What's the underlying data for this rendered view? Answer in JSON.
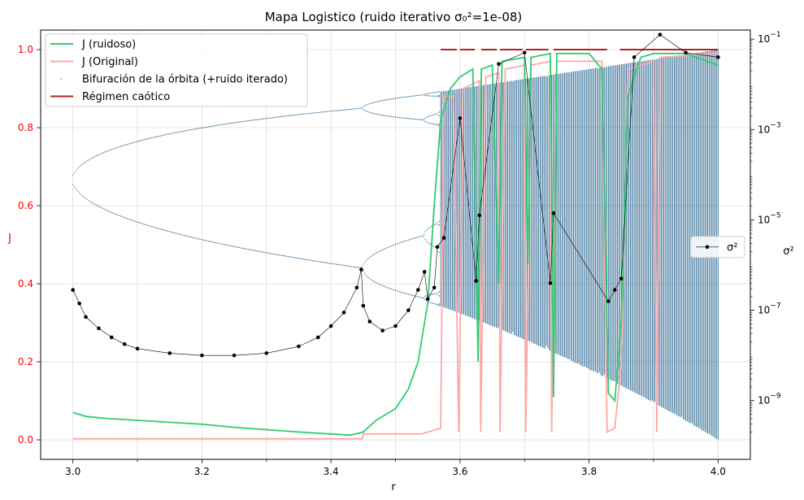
{
  "chart_data": {
    "type": "line",
    "title": "Mapa Logistico (ruido iterativo σ₀²=1e-08)",
    "xlabel": "r",
    "ylabel_left": "J",
    "ylabel_right": "σ²",
    "xlim": [
      2.95,
      4.05
    ],
    "ylim_left": [
      -0.05,
      1.05
    ],
    "ylim_right_log10": [
      -10.3,
      -0.8
    ],
    "right_axis_scale": "log",
    "grid": true,
    "legend_position": "upper-left",
    "x_ticks": [
      "3.0",
      "3.2",
      "3.4",
      "3.6",
      "3.8",
      "4.0"
    ],
    "y_ticks_left": [
      "0.0",
      "0.2",
      "0.4",
      "0.6",
      "0.8",
      "1.0"
    ],
    "y_ticks_right": [
      {
        "base": "10",
        "exp": "−1",
        "log10": -1
      },
      {
        "base": "10",
        "exp": "−3",
        "log10": -3
      },
      {
        "base": "10",
        "exp": "−5",
        "log10": -5
      },
      {
        "base": "10",
        "exp": "−7",
        "log10": -7
      },
      {
        "base": "10",
        "exp": "−9",
        "log10": -9
      }
    ],
    "colors": {
      "j_noisy": "#2ecc71",
      "j_original": "#ffa8a8",
      "bifurcation": "#1f5f8b",
      "chaotic": "#b22222",
      "sigma": "#000000"
    },
    "series": [
      {
        "name": "J (ruidoso)",
        "axis": "left",
        "points": [
          [
            3.0,
            0.07
          ],
          [
            3.02,
            0.06
          ],
          [
            3.05,
            0.055
          ],
          [
            3.1,
            0.05
          ],
          [
            3.15,
            0.045
          ],
          [
            3.2,
            0.04
          ],
          [
            3.25,
            0.032
          ],
          [
            3.3,
            0.026
          ],
          [
            3.35,
            0.02
          ],
          [
            3.4,
            0.015
          ],
          [
            3.43,
            0.012
          ],
          [
            3.45,
            0.02
          ],
          [
            3.47,
            0.05
          ],
          [
            3.5,
            0.08
          ],
          [
            3.52,
            0.13
          ],
          [
            3.535,
            0.2
          ],
          [
            3.55,
            0.35
          ],
          [
            3.56,
            0.6
          ],
          [
            3.57,
            0.82
          ],
          [
            3.585,
            0.9
          ],
          [
            3.6,
            0.93
          ],
          [
            3.62,
            0.95
          ],
          [
            3.628,
            0.2
          ],
          [
            3.633,
            0.95
          ],
          [
            3.65,
            0.96
          ],
          [
            3.66,
            0.4
          ],
          [
            3.665,
            0.97
          ],
          [
            3.7,
            0.98
          ],
          [
            3.705,
            0.45
          ],
          [
            3.71,
            0.98
          ],
          [
            3.74,
            0.99
          ],
          [
            3.745,
            0.11
          ],
          [
            3.75,
            0.99
          ],
          [
            3.8,
            0.99
          ],
          [
            3.82,
            0.95
          ],
          [
            3.83,
            0.12
          ],
          [
            3.84,
            0.1
          ],
          [
            3.85,
            0.3
          ],
          [
            3.86,
            0.88
          ],
          [
            3.88,
            0.98
          ],
          [
            3.9,
            0.99
          ],
          [
            3.95,
            0.99
          ],
          [
            4.0,
            0.96
          ]
        ]
      },
      {
        "name": "J (Original)",
        "axis": "left",
        "points": [
          [
            3.0,
            0.003
          ],
          [
            3.2,
            0.003
          ],
          [
            3.449,
            0.003
          ],
          [
            3.45,
            0.015
          ],
          [
            3.54,
            0.015
          ],
          [
            3.57,
            0.03
          ],
          [
            3.575,
            0.88
          ],
          [
            3.59,
            0.88
          ],
          [
            3.598,
            0.02
          ],
          [
            3.605,
            0.9
          ],
          [
            3.63,
            0.92
          ],
          [
            3.632,
            0.02
          ],
          [
            3.64,
            0.93
          ],
          [
            3.66,
            0.94
          ],
          [
            3.662,
            0.02
          ],
          [
            3.67,
            0.95
          ],
          [
            3.7,
            0.96
          ],
          [
            3.702,
            0.02
          ],
          [
            3.71,
            0.96
          ],
          [
            3.74,
            0.97
          ],
          [
            3.742,
            0.02
          ],
          [
            3.75,
            0.97
          ],
          [
            3.82,
            0.97
          ],
          [
            3.828,
            0.02
          ],
          [
            3.84,
            0.03
          ],
          [
            3.85,
            0.2
          ],
          [
            3.86,
            0.95
          ],
          [
            3.9,
            0.97
          ],
          [
            3.905,
            0.02
          ],
          [
            3.91,
            0.98
          ],
          [
            4.0,
            0.99
          ]
        ]
      },
      {
        "name": "Bifuración de la órbita (+ruido iterado)",
        "axis": "left",
        "description_type": "bifurcation-scatter"
      },
      {
        "name": "Régimen caótico",
        "axis": "left",
        "y": 1.0,
        "segments": [
          [
            3.57,
            3.595
          ],
          [
            3.6,
            3.623
          ],
          [
            3.633,
            3.657
          ],
          [
            3.662,
            3.697
          ],
          [
            3.702,
            3.737
          ],
          [
            3.745,
            3.828
          ],
          [
            3.848,
            4.0
          ]
        ]
      },
      {
        "name": "σ²",
        "axis": "right",
        "points_log10": [
          [
            3.0,
            -6.55
          ],
          [
            3.01,
            -6.85
          ],
          [
            3.02,
            -7.15
          ],
          [
            3.04,
            -7.4
          ],
          [
            3.06,
            -7.6
          ],
          [
            3.08,
            -7.75
          ],
          [
            3.1,
            -7.85
          ],
          [
            3.15,
            -7.95
          ],
          [
            3.2,
            -8.0
          ],
          [
            3.25,
            -8.0
          ],
          [
            3.3,
            -7.95
          ],
          [
            3.35,
            -7.8
          ],
          [
            3.38,
            -7.6
          ],
          [
            3.4,
            -7.35
          ],
          [
            3.42,
            -7.05
          ],
          [
            3.44,
            -6.5
          ],
          [
            3.447,
            -6.1
          ],
          [
            3.45,
            -6.9
          ],
          [
            3.46,
            -7.25
          ],
          [
            3.48,
            -7.45
          ],
          [
            3.5,
            -7.35
          ],
          [
            3.52,
            -7.0
          ],
          [
            3.535,
            -6.55
          ],
          [
            3.545,
            -6.15
          ],
          [
            3.55,
            -6.75
          ],
          [
            3.56,
            -6.5
          ],
          [
            3.565,
            -5.6
          ],
          [
            3.575,
            -5.4
          ],
          [
            3.6,
            -2.75
          ],
          [
            3.625,
            -6.35
          ],
          [
            3.63,
            -4.9
          ],
          [
            3.66,
            -1.55
          ],
          [
            3.7,
            -1.3
          ],
          [
            3.74,
            -6.4
          ],
          [
            3.745,
            -4.85
          ],
          [
            3.83,
            -6.8
          ],
          [
            3.84,
            -6.55
          ],
          [
            3.85,
            -6.3
          ],
          [
            3.87,
            -1.4
          ],
          [
            3.91,
            -0.9
          ],
          [
            3.95,
            -1.3
          ],
          [
            4.0,
            -1.4
          ]
        ]
      }
    ],
    "legend_entries": [
      {
        "label": "J (ruidoso)",
        "style": "line",
        "color": "#2ecc71"
      },
      {
        "label": "J (Original)",
        "style": "line",
        "color": "#ffa8a8"
      },
      {
        "label": "Bifuración de la órbita (+ruido iterado)",
        "style": "dot",
        "color": "#1f5f8b"
      },
      {
        "label": "Régimen caótico",
        "style": "line",
        "color": "#b22222"
      }
    ],
    "legend_right": {
      "label": "σ²",
      "style": "line-marker",
      "color": "#000000"
    }
  }
}
